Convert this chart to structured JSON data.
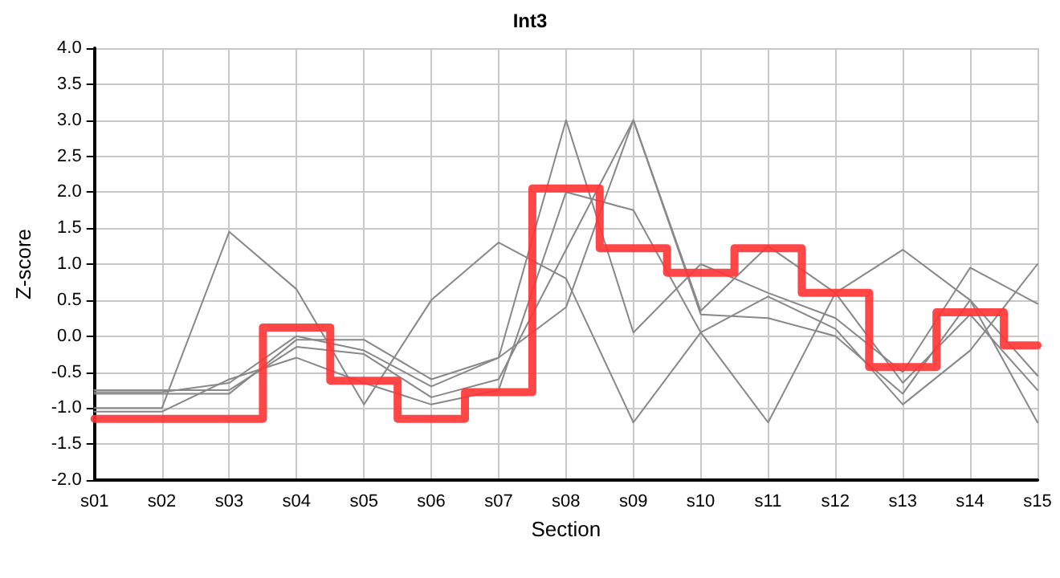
{
  "chart_data": {
    "type": "line",
    "title": "Int3",
    "xlabel": "Section",
    "ylabel": "Z-score",
    "categories": [
      "s01",
      "s02",
      "s03",
      "s04",
      "s05",
      "s06",
      "s07",
      "s08",
      "s09",
      "s10",
      "s11",
      "s12",
      "s13",
      "s14",
      "s15"
    ],
    "series": [
      {
        "color": "#888888",
        "values": [
          -1.0,
          -1.0,
          1.45,
          0.65,
          -0.95,
          0.5,
          1.3,
          0.8,
          -1.2,
          0.05,
          -1.2,
          0.6,
          1.2,
          0.5,
          -1.2
        ]
      },
      {
        "color": "#888888",
        "values": [
          -0.75,
          -0.75,
          -0.75,
          -0.15,
          -0.25,
          -0.85,
          -0.6,
          1.2,
          3.0,
          0.3,
          0.25,
          0.0,
          -0.8,
          0.5,
          -0.55
        ]
      },
      {
        "color": "#888888",
        "values": [
          -0.8,
          -0.8,
          -0.8,
          -0.05,
          -0.05,
          -0.6,
          -0.3,
          3.0,
          0.05,
          1.0,
          0.6,
          0.25,
          -0.5,
          0.95,
          0.45
        ]
      },
      {
        "color": "#888888",
        "values": [
          -0.78,
          -0.78,
          -0.65,
          0.0,
          -0.2,
          -0.7,
          -0.3,
          0.4,
          3.0,
          0.35,
          1.25,
          0.6,
          -0.65,
          0.3,
          -0.75
        ]
      },
      {
        "color": "#888888",
        "values": [
          -1.05,
          -1.05,
          -0.6,
          -0.3,
          -0.65,
          -0.95,
          -0.75,
          2.0,
          1.75,
          0.05,
          0.55,
          0.1,
          -0.95,
          -0.2,
          1.0
        ]
      },
      {
        "type": "step",
        "color": "#ff3333",
        "values": [
          -1.15,
          -1.15,
          -1.15,
          0.12,
          -0.62,
          -1.15,
          -0.78,
          2.05,
          1.22,
          0.88,
          1.22,
          0.6,
          -0.43,
          0.33,
          -0.13
        ]
      }
    ],
    "ylim": [
      -2,
      4
    ],
    "yticks": [
      {
        "value": -2,
        "label": "-2.0"
      },
      {
        "value": -1.5,
        "label": "-1.5"
      },
      {
        "value": -1,
        "label": "-1.0"
      },
      {
        "value": -0.5,
        "label": "-0.5"
      },
      {
        "value": 0,
        "label": "0.0"
      },
      {
        "value": 0.5,
        "label": "0.5"
      },
      {
        "value": 1,
        "label": "1.0"
      },
      {
        "value": 1.5,
        "label": "1.5"
      },
      {
        "value": 2,
        "label": "2.0"
      },
      {
        "value": 2.5,
        "label": "2.5"
      },
      {
        "value": 3,
        "label": "3.0"
      },
      {
        "value": 3.5,
        "label": "3.5"
      },
      {
        "value": 4,
        "label": "4.0"
      }
    ],
    "grid": true,
    "marker": "none"
  }
}
